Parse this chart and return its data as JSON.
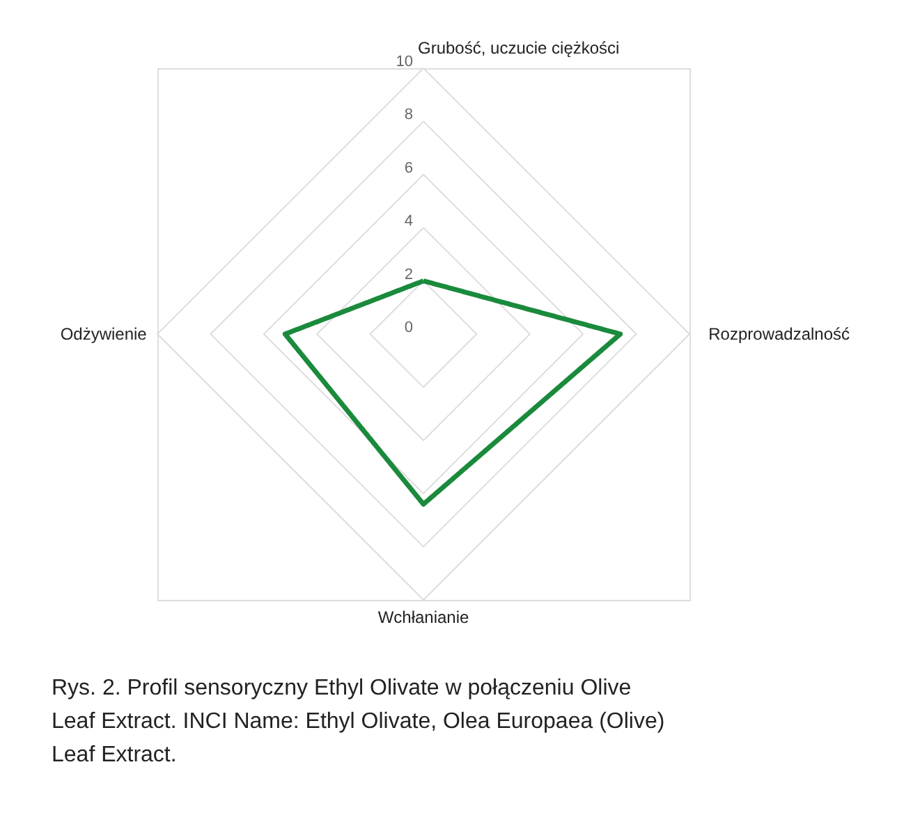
{
  "chart_data": {
    "type": "radar",
    "categories": [
      "Grubość, uczucie ciężkości",
      "Rozprowadzalność",
      "Wchłanianie",
      "Odżywienie"
    ],
    "series": [
      {
        "color": "#1a8a3c",
        "values": [
          2.0,
          7.4,
          6.4,
          5.2
        ]
      }
    ],
    "ylim": [
      0,
      10
    ],
    "yticks": [
      0,
      2,
      4,
      6,
      8,
      10
    ],
    "grid": true,
    "marker": "none",
    "line_style": "solid",
    "annotations": [
      "Rys. 2. Profil sensoryczny Ethyl Olivate w połączeniu Olive Leaf Extract. INCI Name: Ethyl Olivate, Olea Europaea (Olive) Leaf Extract."
    ]
  }
}
